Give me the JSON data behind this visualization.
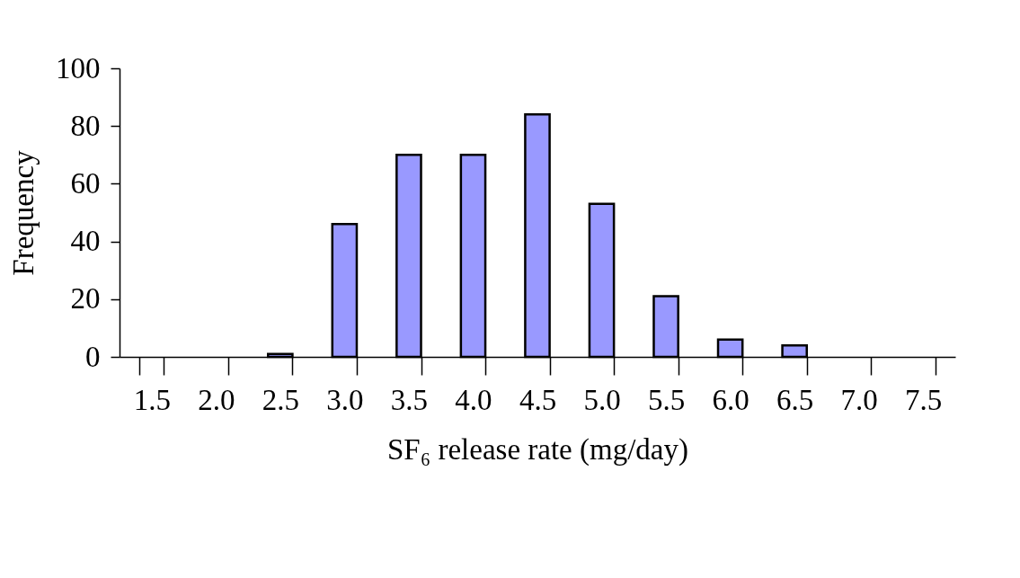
{
  "chart_data": {
    "type": "bar",
    "categories": [
      "1.5",
      "2.0",
      "2.5",
      "3.0",
      "3.5",
      "4.0",
      "4.5",
      "5.0",
      "5.5",
      "6.0",
      "6.5",
      "7.0",
      "7.5"
    ],
    "values": [
      null,
      null,
      1,
      46,
      70,
      70,
      84,
      53,
      21,
      6,
      4,
      null,
      null
    ],
    "color": "#9999ff",
    "xlabel": "SF₆ release rate (mg/day)",
    "ylabel": "Frequency",
    "ylim": [
      0,
      100
    ],
    "yticks": [
      0,
      20,
      40,
      60,
      80,
      100
    ],
    "grid": false
  }
}
